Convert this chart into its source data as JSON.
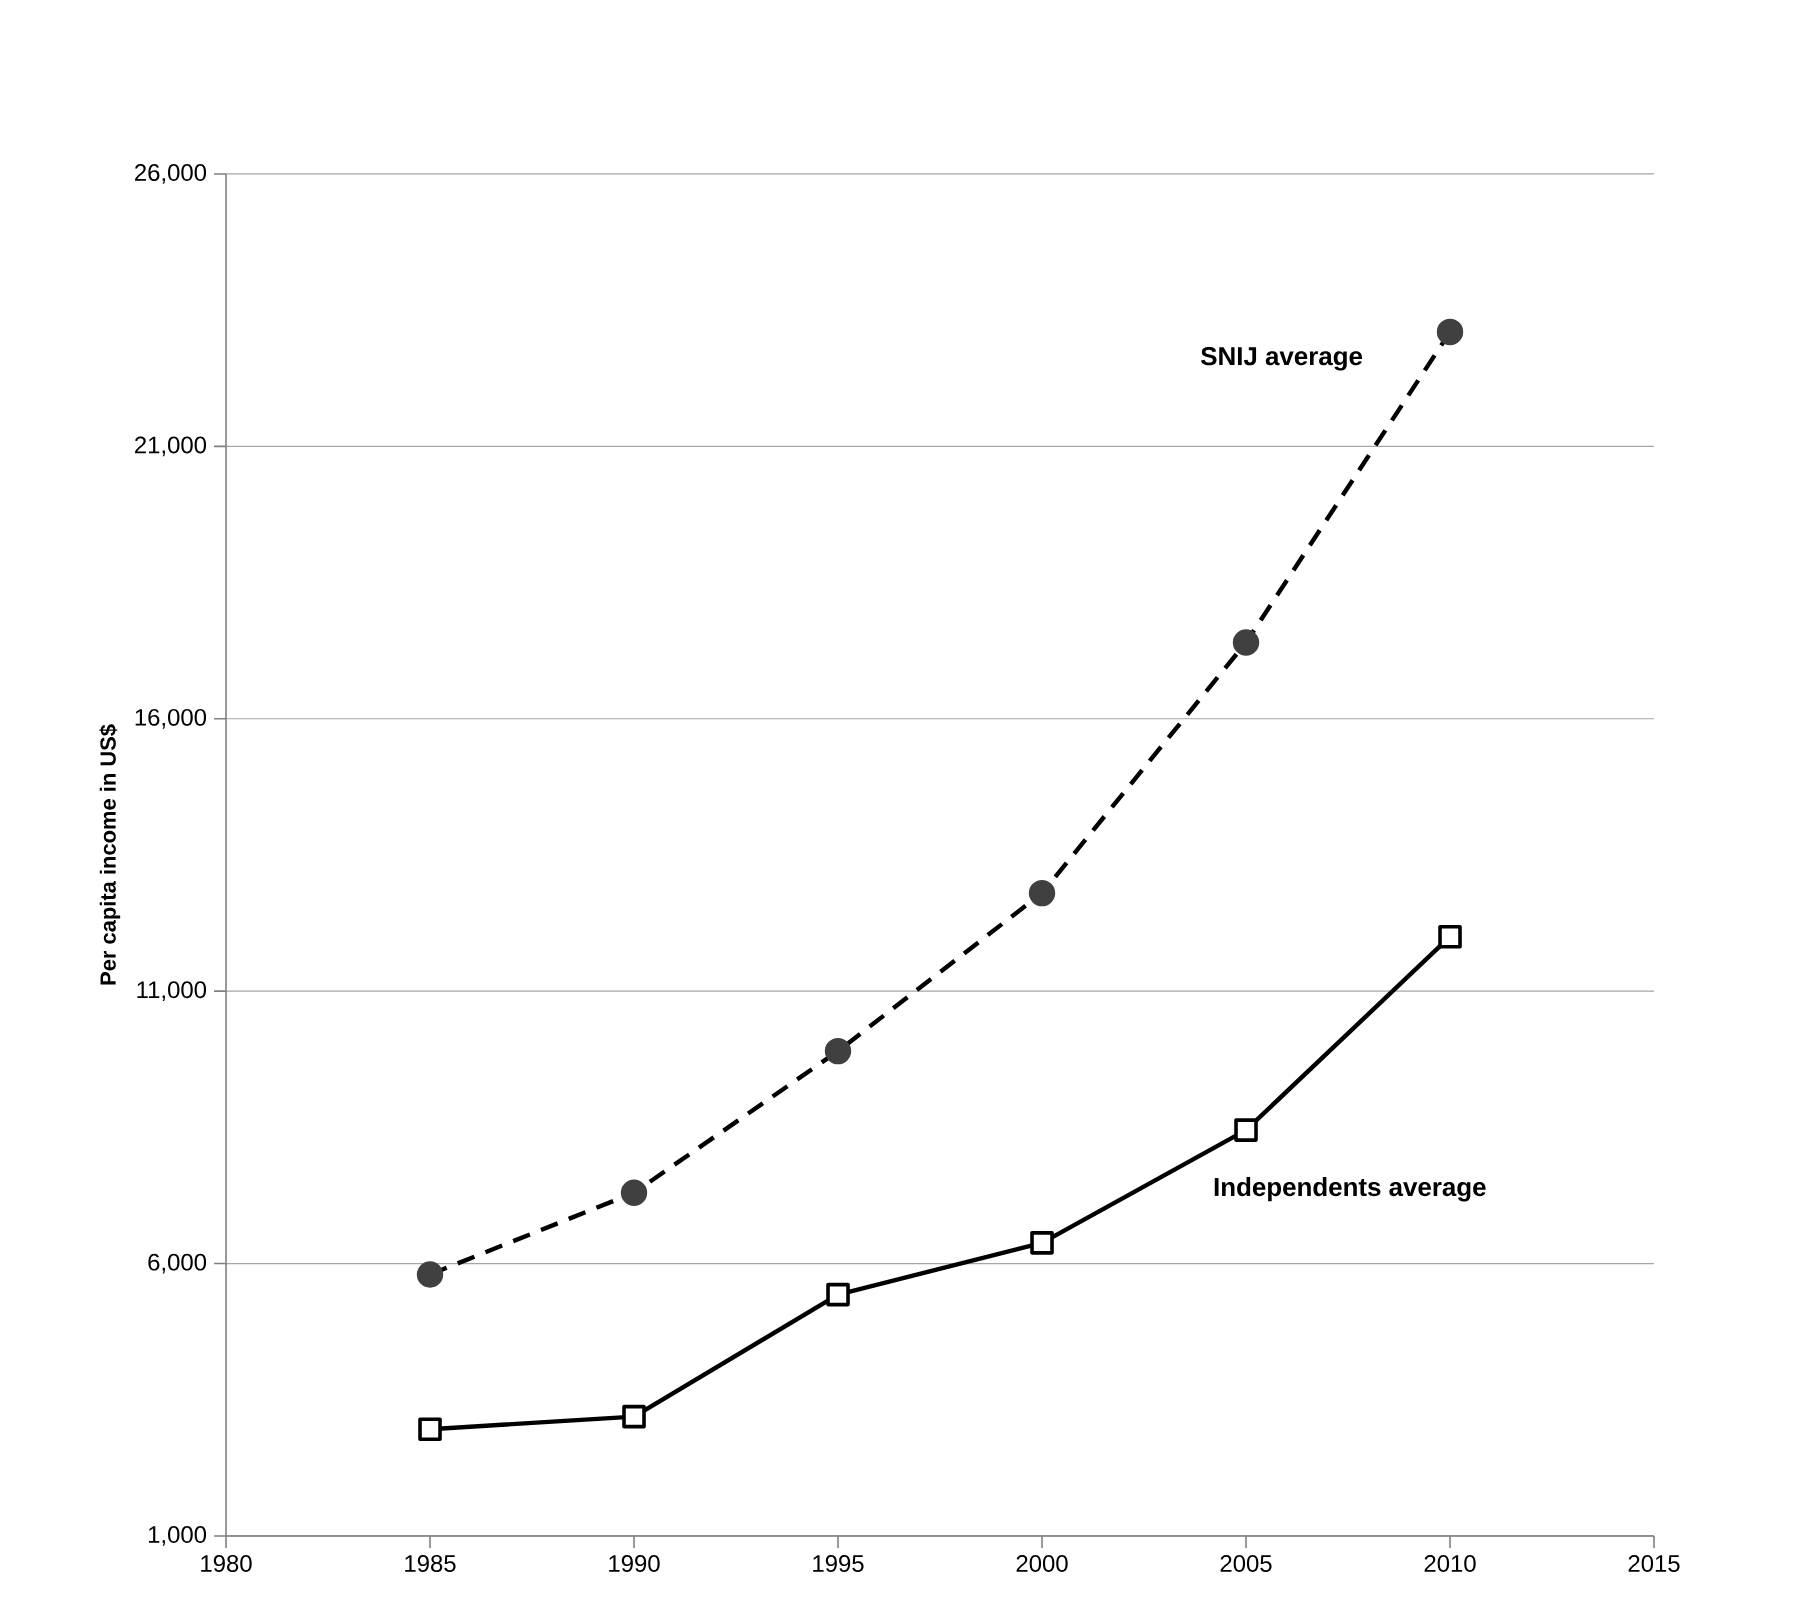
{
  "chart_data": {
    "type": "line",
    "ylabel": "Per capita income in US$",
    "x": [
      1985,
      1990,
      1995,
      2000,
      2005,
      2010
    ],
    "series": [
      {
        "name": "SNIJ average",
        "color": "#404040",
        "marker": "circle",
        "line_style": "dashed",
        "values": [
          5800,
          7300,
          9900,
          12800,
          17400,
          23100
        ]
      },
      {
        "name": "Independents average",
        "color": "#000000",
        "marker": "square",
        "line_style": "solid",
        "values": [
          2960,
          3190,
          5430,
          6380,
          8450,
          12000
        ]
      }
    ],
    "xlim": [
      1980,
      2015
    ],
    "xticks": [
      1980,
      1985,
      1990,
      1995,
      2000,
      2005,
      2010,
      2015
    ],
    "ylim": [
      1000,
      26000
    ],
    "yticks": [
      {
        "value": 1000,
        "label": "1,000"
      },
      {
        "value": 6000,
        "label": "6,000"
      },
      {
        "value": 11000,
        "label": "11,000"
      },
      {
        "value": 16000,
        "label": "16,000"
      },
      {
        "value": 21000,
        "label": "21,000"
      },
      {
        "value": 26000,
        "label": "26,000"
      }
    ],
    "grid": "y",
    "legend": false
  }
}
